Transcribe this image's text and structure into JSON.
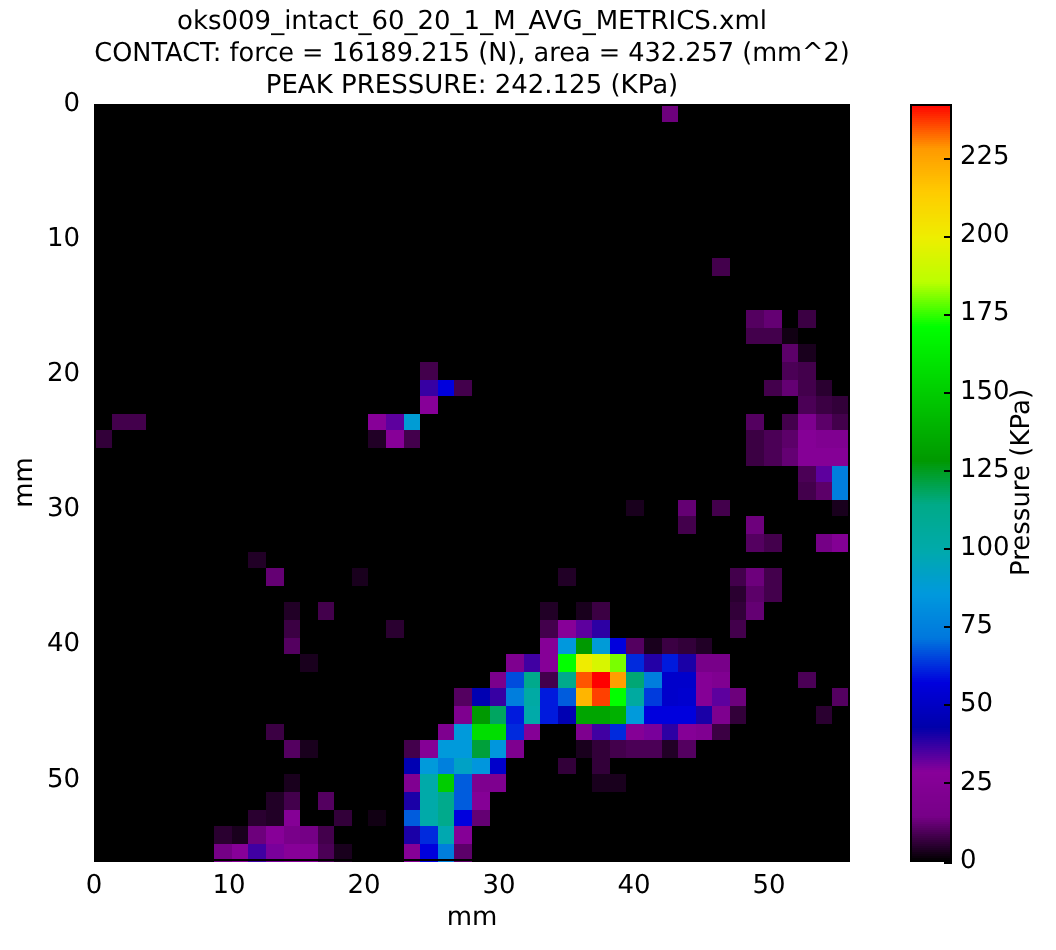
{
  "chart_data": {
    "type": "heatmap",
    "title": "oks009_intact_60_20_1_M_AVG_METRICS.xml\nCONTACT: force = 16189.215 (N), area = 432.257 (mm^2)\nPEAK PRESSURE: 242.125 (KPa)",
    "xlabel": "mm",
    "ylabel": "mm",
    "clabel": "Pressure (KPa)",
    "xlim": [
      0,
      56
    ],
    "xticks": [
      0,
      10,
      20,
      30,
      40,
      50
    ],
    "ylim": [
      56,
      0
    ],
    "yticks": [
      0,
      10,
      20,
      30,
      40,
      50
    ],
    "clim": [
      0,
      242
    ],
    "cticks": [
      0,
      25,
      50,
      75,
      100,
      125,
      150,
      175,
      200,
      225
    ],
    "cells": [
      [
        0,
        0,
        0,
        0,
        0,
        0,
        0,
        0,
        0,
        0,
        0,
        0,
        0,
        0,
        0,
        0,
        0,
        0,
        0,
        0,
        0,
        0,
        0,
        0,
        0,
        0,
        0,
        0,
        0,
        0,
        0,
        0,
        0,
        13,
        0,
        0,
        0,
        0,
        0,
        0,
        0,
        0,
        0,
        0
      ],
      [
        0,
        0,
        0,
        0,
        0,
        0,
        0,
        0,
        0,
        0,
        0,
        0,
        0,
        0,
        0,
        0,
        0,
        0,
        0,
        0,
        0,
        0,
        0,
        0,
        0,
        0,
        0,
        0,
        0,
        0,
        0,
        0,
        0,
        0,
        0,
        0,
        0,
        0,
        0,
        0,
        0,
        0,
        0,
        0
      ],
      [
        0,
        0,
        0,
        0,
        0,
        0,
        0,
        0,
        0,
        0,
        0,
        0,
        0,
        0,
        0,
        0,
        0,
        0,
        0,
        0,
        0,
        0,
        0,
        0,
        0,
        0,
        0,
        0,
        0,
        0,
        0,
        0,
        0,
        0,
        0,
        0,
        0,
        0,
        0,
        0,
        0,
        0,
        0,
        0
      ],
      [
        0,
        0,
        0,
        0,
        0,
        0,
        0,
        0,
        0,
        0,
        0,
        0,
        0,
        0,
        0,
        0,
        0,
        0,
        0,
        0,
        0,
        0,
        0,
        0,
        0,
        0,
        0,
        0,
        0,
        0,
        0,
        0,
        0,
        0,
        0,
        0,
        0,
        0,
        0,
        0,
        0,
        0,
        0,
        0
      ],
      [
        0,
        0,
        0,
        0,
        0,
        0,
        0,
        0,
        0,
        0,
        0,
        0,
        0,
        0,
        0,
        0,
        0,
        0,
        0,
        0,
        0,
        0,
        0,
        0,
        0,
        0,
        0,
        0,
        0,
        0,
        0,
        0,
        0,
        0,
        0,
        0,
        0,
        0,
        0,
        0,
        0,
        0,
        0,
        0
      ],
      [
        0,
        0,
        0,
        0,
        0,
        0,
        0,
        0,
        0,
        0,
        0,
        0,
        0,
        0,
        0,
        0,
        0,
        0,
        0,
        0,
        0,
        0,
        0,
        0,
        0,
        0,
        0,
        0,
        0,
        0,
        0,
        0,
        0,
        0,
        0,
        0,
        0,
        0,
        0,
        0,
        0,
        0,
        0,
        0
      ],
      [
        0,
        0,
        0,
        0,
        0,
        0,
        0,
        0,
        0,
        0,
        0,
        0,
        0,
        0,
        0,
        0,
        0,
        0,
        0,
        0,
        0,
        0,
        0,
        0,
        0,
        0,
        0,
        0,
        0,
        0,
        0,
        0,
        0,
        0,
        0,
        0,
        0,
        0,
        0,
        0,
        0,
        0,
        0,
        0
      ],
      [
        0,
        0,
        0,
        0,
        0,
        0,
        0,
        0,
        0,
        0,
        0,
        0,
        0,
        0,
        0,
        0,
        0,
        0,
        0,
        0,
        0,
        0,
        0,
        0,
        0,
        0,
        0,
        0,
        0,
        0,
        0,
        0,
        0,
        0,
        0,
        0,
        0,
        0,
        0,
        0,
        0,
        0,
        0,
        0
      ],
      [
        0,
        0,
        0,
        0,
        0,
        0,
        0,
        0,
        0,
        0,
        0,
        0,
        0,
        0,
        0,
        0,
        0,
        0,
        0,
        0,
        0,
        0,
        0,
        0,
        0,
        0,
        0,
        0,
        0,
        0,
        0,
        0,
        0,
        0,
        0,
        0,
        0,
        0,
        0,
        0,
        0,
        0,
        0,
        0
      ],
      [
        0,
        0,
        0,
        0,
        0,
        0,
        0,
        0,
        0,
        0,
        0,
        0,
        0,
        0,
        0,
        0,
        0,
        0,
        0,
        0,
        0,
        0,
        0,
        0,
        0,
        0,
        0,
        0,
        0,
        0,
        0,
        0,
        0,
        0,
        0,
        0,
        8,
        0,
        0,
        0,
        0,
        0,
        0,
        0
      ],
      [
        0,
        0,
        0,
        0,
        0,
        0,
        0,
        0,
        0,
        0,
        0,
        0,
        0,
        0,
        0,
        0,
        0,
        0,
        0,
        0,
        0,
        0,
        0,
        0,
        0,
        0,
        0,
        0,
        0,
        0,
        0,
        0,
        0,
        0,
        0,
        0,
        0,
        0,
        0,
        0,
        0,
        0,
        0,
        0
      ],
      [
        0,
        0,
        0,
        0,
        0,
        0,
        0,
        0,
        0,
        0,
        0,
        0,
        0,
        0,
        0,
        0,
        0,
        0,
        0,
        0,
        0,
        0,
        0,
        0,
        0,
        0,
        0,
        0,
        0,
        0,
        0,
        0,
        0,
        0,
        0,
        0,
        0,
        0,
        0,
        0,
        0,
        0,
        0,
        0
      ],
      [
        0,
        0,
        0,
        0,
        0,
        0,
        0,
        0,
        0,
        0,
        0,
        0,
        0,
        0,
        0,
        0,
        0,
        0,
        0,
        0,
        0,
        0,
        0,
        0,
        0,
        0,
        0,
        0,
        0,
        0,
        0,
        0,
        0,
        0,
        0,
        0,
        0,
        0,
        10,
        12,
        0,
        7,
        0,
        0
      ],
      [
        0,
        0,
        0,
        0,
        0,
        0,
        0,
        0,
        0,
        0,
        0,
        0,
        0,
        0,
        0,
        0,
        0,
        0,
        0,
        0,
        0,
        0,
        0,
        0,
        0,
        0,
        0,
        0,
        0,
        0,
        0,
        0,
        0,
        0,
        0,
        0,
        0,
        0,
        8,
        8,
        2,
        0,
        0,
        0
      ],
      [
        0,
        0,
        0,
        0,
        0,
        0,
        0,
        0,
        0,
        0,
        0,
        0,
        0,
        0,
        0,
        0,
        0,
        0,
        0,
        0,
        0,
        0,
        0,
        0,
        0,
        0,
        0,
        0,
        0,
        0,
        0,
        0,
        0,
        0,
        0,
        0,
        0,
        0,
        0,
        0,
        11,
        3,
        0,
        0
      ],
      [
        0,
        0,
        0,
        0,
        0,
        0,
        0,
        0,
        0,
        0,
        0,
        0,
        0,
        0,
        0,
        0,
        0,
        0,
        0,
        8,
        0,
        0,
        0,
        0,
        0,
        0,
        0,
        0,
        0,
        0,
        0,
        0,
        0,
        0,
        0,
        0,
        0,
        0,
        0,
        0,
        9,
        8,
        0,
        0
      ],
      [
        0,
        0,
        0,
        0,
        0,
        0,
        0,
        0,
        0,
        0,
        0,
        0,
        0,
        0,
        0,
        0,
        0,
        0,
        0,
        37,
        57,
        8,
        0,
        0,
        0,
        0,
        0,
        0,
        0,
        0,
        0,
        0,
        0,
        0,
        0,
        0,
        0,
        0,
        0,
        8,
        12,
        8,
        5,
        0
      ],
      [
        0,
        0,
        0,
        0,
        0,
        0,
        0,
        0,
        0,
        0,
        0,
        0,
        0,
        0,
        0,
        0,
        0,
        0,
        0,
        28,
        0,
        0,
        0,
        0,
        0,
        0,
        0,
        0,
        0,
        0,
        0,
        0,
        0,
        0,
        0,
        0,
        0,
        0,
        0,
        0,
        0,
        9,
        7,
        6
      ],
      [
        0,
        8,
        8,
        0,
        0,
        0,
        0,
        0,
        0,
        0,
        0,
        0,
        0,
        0,
        0,
        0,
        28,
        33,
        88,
        0,
        0,
        0,
        0,
        0,
        0,
        0,
        0,
        0,
        0,
        0,
        0,
        0,
        0,
        0,
        0,
        0,
        0,
        0,
        10,
        0,
        8,
        20,
        11,
        8
      ],
      [
        6,
        0,
        0,
        0,
        0,
        0,
        0,
        0,
        0,
        0,
        0,
        0,
        0,
        0,
        0,
        0,
        4,
        28,
        8,
        0,
        0,
        0,
        0,
        0,
        0,
        0,
        0,
        0,
        0,
        0,
        0,
        0,
        0,
        0,
        0,
        0,
        0,
        0,
        7,
        9,
        11,
        26,
        22,
        22
      ],
      [
        0,
        0,
        0,
        0,
        0,
        0,
        0,
        0,
        0,
        0,
        0,
        0,
        0,
        0,
        0,
        0,
        0,
        0,
        0,
        0,
        0,
        0,
        0,
        0,
        0,
        0,
        0,
        0,
        0,
        0,
        0,
        0,
        0,
        0,
        0,
        0,
        0,
        0,
        7,
        9,
        12,
        26,
        26,
        26
      ],
      [
        0,
        0,
        0,
        0,
        0,
        0,
        0,
        0,
        0,
        0,
        0,
        0,
        0,
        0,
        0,
        0,
        0,
        0,
        0,
        0,
        0,
        0,
        0,
        0,
        0,
        0,
        0,
        0,
        0,
        0,
        0,
        0,
        0,
        0,
        0,
        0,
        0,
        0,
        0,
        0,
        0,
        9,
        33,
        74
      ],
      [
        0,
        0,
        0,
        0,
        0,
        0,
        0,
        0,
        0,
        0,
        0,
        0,
        0,
        0,
        0,
        0,
        0,
        0,
        0,
        0,
        0,
        0,
        0,
        0,
        0,
        0,
        0,
        0,
        0,
        0,
        0,
        0,
        0,
        0,
        0,
        0,
        0,
        0,
        0,
        0,
        0,
        8,
        11,
        74
      ],
      [
        0,
        0,
        0,
        0,
        0,
        0,
        0,
        0,
        0,
        0,
        0,
        0,
        0,
        0,
        0,
        0,
        0,
        0,
        0,
        0,
        0,
        0,
        0,
        0,
        0,
        0,
        0,
        0,
        0,
        0,
        0,
        3,
        0,
        0,
        12,
        0,
        8,
        0,
        0,
        0,
        0,
        0,
        0,
        3
      ],
      [
        0,
        0,
        0,
        0,
        0,
        0,
        0,
        0,
        0,
        0,
        0,
        0,
        0,
        0,
        0,
        0,
        0,
        0,
        0,
        0,
        0,
        0,
        0,
        0,
        0,
        0,
        0,
        0,
        0,
        0,
        0,
        0,
        0,
        0,
        8,
        0,
        0,
        0,
        13,
        0,
        0,
        0,
        0,
        0
      ],
      [
        0,
        0,
        0,
        0,
        0,
        0,
        0,
        0,
        0,
        0,
        0,
        0,
        0,
        0,
        0,
        0,
        0,
        0,
        0,
        0,
        0,
        0,
        0,
        0,
        0,
        0,
        0,
        0,
        0,
        0,
        0,
        0,
        0,
        0,
        0,
        0,
        0,
        0,
        10,
        8,
        0,
        0,
        14,
        24
      ],
      [
        0,
        0,
        0,
        0,
        0,
        0,
        0,
        0,
        0,
        4,
        0,
        0,
        0,
        0,
        0,
        0,
        0,
        0,
        0,
        0,
        0,
        0,
        0,
        0,
        0,
        0,
        0,
        0,
        0,
        0,
        0,
        0,
        0,
        0,
        0,
        0,
        0,
        0,
        0,
        0,
        0,
        0,
        0,
        0
      ],
      [
        0,
        0,
        0,
        0,
        0,
        0,
        0,
        0,
        0,
        0,
        12,
        0,
        0,
        0,
        0,
        3,
        0,
        0,
        0,
        0,
        0,
        0,
        0,
        0,
        0,
        0,
        0,
        4,
        0,
        0,
        0,
        0,
        0,
        0,
        0,
        0,
        0,
        8,
        13,
        8,
        0,
        0,
        0,
        0
      ],
      [
        0,
        0,
        0,
        0,
        0,
        0,
        0,
        0,
        0,
        0,
        0,
        0,
        0,
        0,
        0,
        0,
        0,
        0,
        0,
        0,
        0,
        0,
        0,
        0,
        0,
        0,
        0,
        0,
        0,
        0,
        0,
        0,
        0,
        0,
        0,
        0,
        0,
        5,
        11,
        8,
        0,
        0,
        0,
        0
      ],
      [
        0,
        0,
        0,
        0,
        0,
        0,
        0,
        0,
        0,
        0,
        0,
        4,
        0,
        8,
        0,
        0,
        0,
        0,
        0,
        0,
        0,
        0,
        0,
        0,
        0,
        0,
        4,
        0,
        3,
        7,
        0,
        0,
        0,
        0,
        0,
        0,
        0,
        6,
        12,
        0,
        0,
        0,
        0,
        0
      ],
      [
        0,
        0,
        0,
        0,
        0,
        0,
        0,
        0,
        0,
        0,
        0,
        7,
        0,
        0,
        0,
        0,
        0,
        5,
        0,
        0,
        0,
        0,
        0,
        0,
        0,
        0,
        8,
        28,
        33,
        38,
        0,
        0,
        0,
        0,
        0,
        0,
        0,
        8,
        0,
        0,
        0,
        0,
        0,
        0
      ],
      [
        0,
        0,
        0,
        0,
        0,
        0,
        0,
        0,
        0,
        0,
        0,
        10,
        0,
        0,
        0,
        0,
        0,
        0,
        0,
        0,
        0,
        0,
        0,
        0,
        0,
        0,
        27,
        85,
        128,
        87,
        57,
        10,
        3,
        7,
        6,
        4,
        0,
        0,
        0,
        0,
        0,
        0,
        0,
        0
      ],
      [
        0,
        0,
        0,
        0,
        0,
        0,
        0,
        0,
        0,
        0,
        0,
        0,
        3,
        0,
        0,
        0,
        0,
        0,
        0,
        0,
        0,
        0,
        0,
        0,
        20,
        36,
        27,
        171,
        200,
        193,
        180,
        62,
        39,
        60,
        40,
        15,
        15,
        0,
        0,
        0,
        0,
        0,
        0,
        0
      ],
      [
        0,
        0,
        0,
        0,
        0,
        0,
        0,
        0,
        0,
        0,
        0,
        0,
        0,
        0,
        0,
        0,
        0,
        0,
        0,
        0,
        0,
        0,
        0,
        18,
        66,
        112,
        8,
        112,
        234,
        242,
        226,
        116,
        74,
        52,
        52,
        26,
        22,
        0,
        0,
        0,
        0,
        9,
        0,
        0
      ],
      [
        0,
        0,
        0,
        0,
        0,
        0,
        0,
        0,
        0,
        0,
        0,
        0,
        0,
        0,
        0,
        0,
        0,
        0,
        0,
        0,
        0,
        10,
        45,
        37,
        74,
        102,
        60,
        68,
        220,
        236,
        171,
        104,
        64,
        52,
        53,
        26,
        33,
        13,
        0,
        0,
        0,
        0,
        0,
        10
      ],
      [
        0,
        0,
        0,
        0,
        0,
        0,
        0,
        0,
        0,
        0,
        0,
        0,
        0,
        0,
        0,
        0,
        0,
        0,
        0,
        0,
        0,
        20,
        128,
        118,
        60,
        100,
        60,
        45,
        133,
        133,
        138,
        86,
        57,
        57,
        57,
        40,
        20,
        6,
        0,
        0,
        0,
        0,
        5,
        0
      ],
      [
        0,
        0,
        0,
        0,
        0,
        0,
        0,
        0,
        0,
        0,
        7,
        0,
        0,
        0,
        0,
        0,
        0,
        0,
        0,
        0,
        20,
        86,
        157,
        157,
        62,
        26,
        0,
        0,
        20,
        36,
        62,
        26,
        30,
        38,
        26,
        22,
        7,
        0,
        0,
        0,
        0,
        0,
        0,
        0
      ],
      [
        0,
        0,
        0,
        0,
        0,
        0,
        0,
        0,
        0,
        0,
        0,
        10,
        3,
        0,
        0,
        0,
        0,
        0,
        8,
        26,
        86,
        86,
        122,
        84,
        20,
        0,
        0,
        0,
        3,
        6,
        8,
        9,
        9,
        4,
        10,
        0,
        0,
        0,
        0,
        0,
        0,
        0,
        0,
        0
      ],
      [
        0,
        0,
        0,
        0,
        0,
        0,
        0,
        0,
        0,
        0,
        0,
        0,
        0,
        0,
        0,
        0,
        0,
        0,
        45,
        86,
        75,
        92,
        84,
        52,
        0,
        0,
        0,
        6,
        0,
        6,
        0,
        0,
        0,
        0,
        0,
        0,
        0,
        0,
        0,
        0,
        0,
        0,
        0,
        0
      ],
      [
        0,
        0,
        0,
        0,
        0,
        0,
        0,
        0,
        0,
        0,
        0,
        3,
        0,
        0,
        0,
        0,
        0,
        0,
        22,
        100,
        150,
        68,
        20,
        20,
        0,
        0,
        0,
        0,
        0,
        3,
        3,
        0,
        0,
        0,
        0,
        0,
        0,
        0,
        0,
        0,
        0,
        0,
        0,
        0
      ],
      [
        0,
        0,
        0,
        0,
        0,
        0,
        0,
        0,
        0,
        0,
        4,
        8,
        0,
        10,
        0,
        0,
        0,
        0,
        40,
        100,
        112,
        68,
        26,
        0,
        0,
        0,
        0,
        0,
        0,
        0,
        0,
        0,
        0,
        0,
        0,
        0,
        0,
        0,
        0,
        0,
        0,
        0,
        0,
        0
      ],
      [
        0,
        0,
        0,
        0,
        0,
        0,
        0,
        0,
        0,
        5,
        4,
        26,
        0,
        0,
        6,
        0,
        2,
        0,
        68,
        100,
        112,
        57,
        12,
        0,
        0,
        0,
        0,
        0,
        0,
        0,
        0,
        0,
        0,
        0,
        0,
        0,
        0,
        0,
        0,
        0,
        0,
        0,
        0,
        0
      ],
      [
        0,
        0,
        0,
        0,
        0,
        0,
        0,
        5,
        3,
        13,
        28,
        16,
        14,
        8,
        0,
        0,
        0,
        0,
        40,
        62,
        98,
        26,
        0,
        0,
        0,
        0,
        0,
        0,
        0,
        0,
        0,
        0,
        0,
        0,
        0,
        0,
        0,
        0,
        0,
        0,
        0,
        0,
        0,
        0
      ],
      [
        0,
        0,
        0,
        0,
        0,
        0,
        0,
        14,
        28,
        36,
        30,
        28,
        26,
        9,
        3,
        0,
        0,
        0,
        26,
        57,
        74,
        11,
        0,
        0,
        0,
        0,
        0,
        0,
        0,
        0,
        0,
        0,
        0,
        0,
        0,
        0,
        0,
        0,
        0,
        0,
        0,
        0,
        0,
        0
      ]
    ]
  }
}
